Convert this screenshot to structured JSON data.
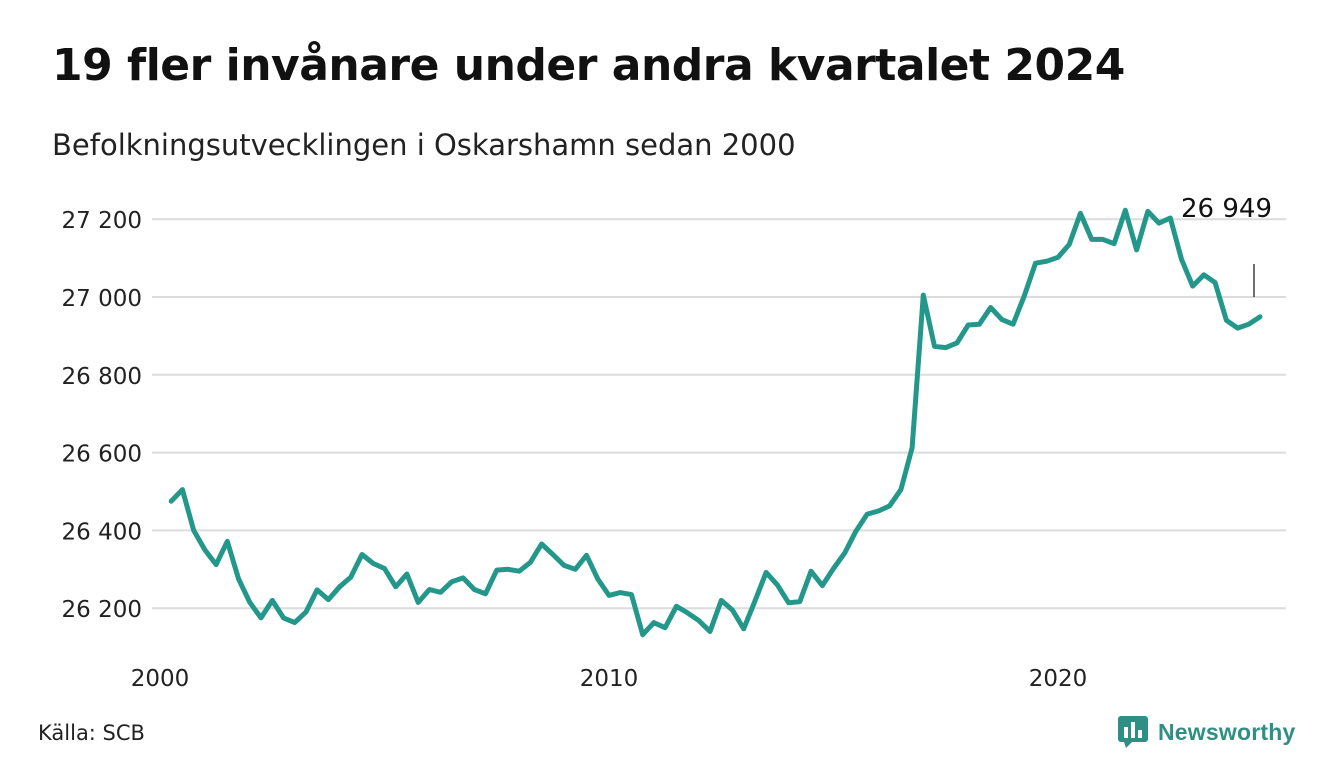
{
  "header": {
    "title": "19 fler invånare under andra kvartalet 2024",
    "subtitle": "Befolkningsutvecklingen i Oskarshamn sedan 2000"
  },
  "footer": {
    "source": "Källa: SCB",
    "brand_name": "Newsworthy",
    "brand_icon": "newsworthy-logo-icon",
    "brand_color": "#2f8f84"
  },
  "chart_data": {
    "type": "line",
    "title": "19 fler invånare under andra kvartalet 2024",
    "subtitle": "Befolkningsutvecklingen i Oskarshamn sedan 2000",
    "xlabel": "",
    "ylabel": "",
    "x_ticks": [
      2000,
      2010,
      2020
    ],
    "y_ticks": [
      26200,
      26400,
      26600,
      26800,
      27000,
      27200
    ],
    "y_tick_labels": [
      "26 200",
      "26 400",
      "26 600",
      "26 800",
      "27 000",
      "27 200"
    ],
    "xlim": [
      2000.0,
      2025.75
    ],
    "ylim": [
      26100,
      27250
    ],
    "grid": "horizontal",
    "line_color": "#23988a",
    "annotation": {
      "text": "26 949",
      "value": 26949
    },
    "series": [
      {
        "x_start": 2000.25,
        "x_step": 0.25,
        "values": [
          26475,
          26505,
          26400,
          26350,
          26312,
          26372,
          26275,
          26215,
          26175,
          26220,
          26175,
          26163,
          26190,
          26247,
          26222,
          26255,
          26280,
          26338,
          26315,
          26302,
          26255,
          26288,
          26215,
          26248,
          26241,
          26268,
          26278,
          26248,
          26237,
          26298,
          26300,
          26295,
          26318,
          26365,
          26338,
          26310,
          26300,
          26336,
          26275,
          26233,
          26240,
          26235,
          26132,
          26163,
          26150,
          26205,
          26188,
          26168,
          26140,
          26220,
          26195,
          26147,
          26218,
          26292,
          26260,
          26214,
          26217,
          26295,
          26258,
          26302,
          26342,
          26398,
          26442,
          26450,
          26463,
          26505,
          26612,
          27005,
          26873,
          26870,
          26882,
          26928,
          26930,
          26973,
          26942,
          26930,
          27003,
          27087,
          27092,
          27102,
          27135,
          27215,
          27148,
          27148,
          27137,
          27223,
          27121,
          27220,
          27190,
          27203,
          27097,
          27028,
          27057,
          27037,
          26940,
          26920,
          26930,
          26949
        ]
      }
    ]
  }
}
